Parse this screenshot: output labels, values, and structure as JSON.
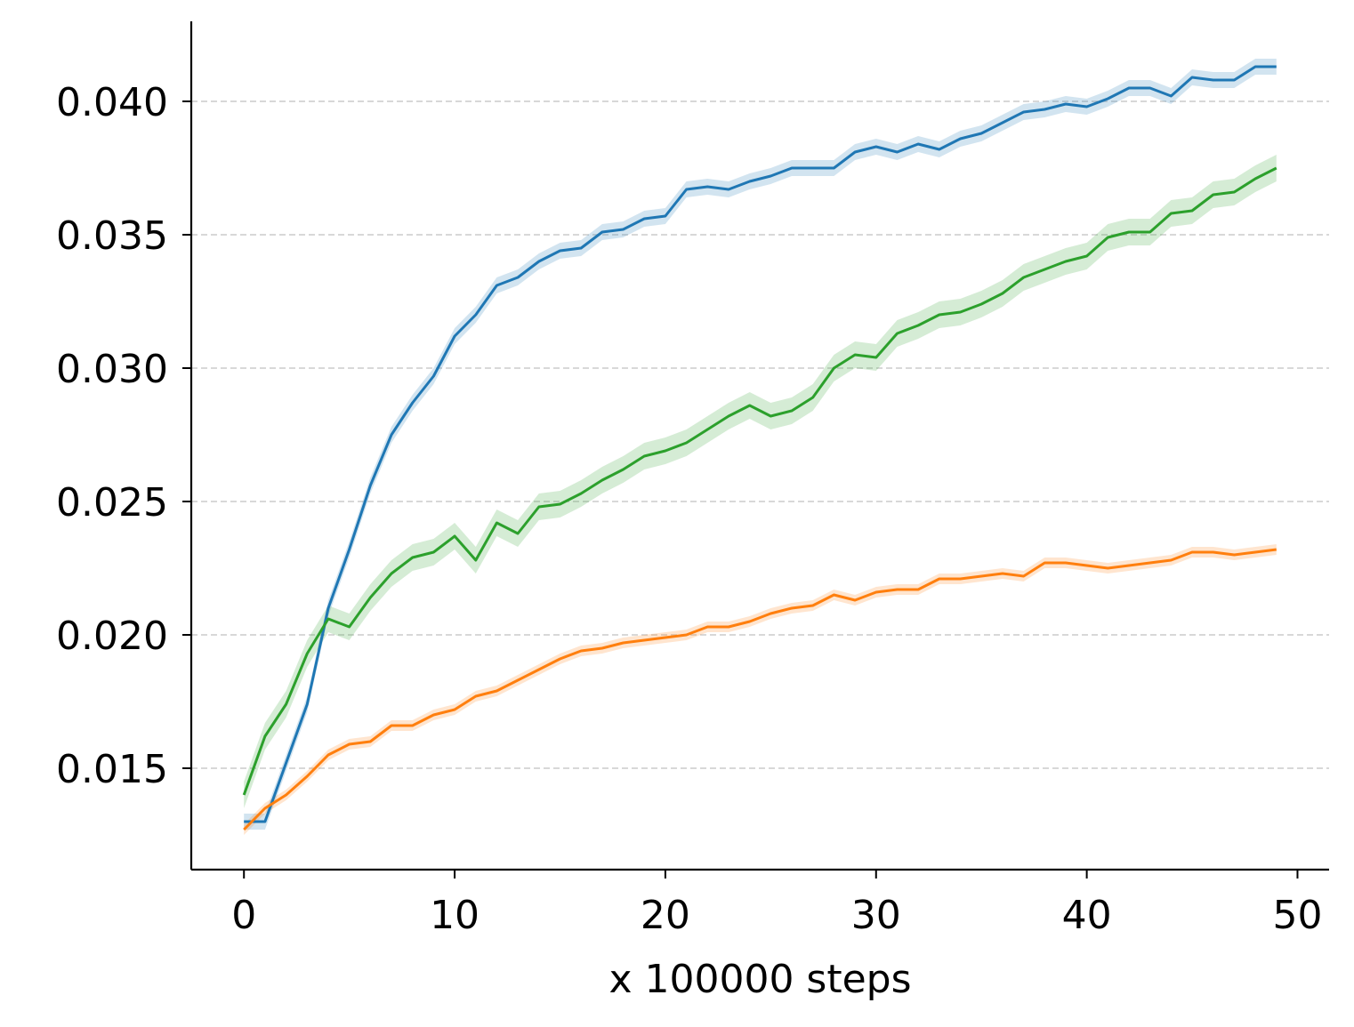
{
  "chart_data": {
    "type": "line",
    "title": "",
    "xlabel": "x 100000 steps",
    "ylabel": "",
    "xlim": [
      -2.5,
      51.5
    ],
    "ylim": [
      0.0112,
      0.043
    ],
    "xticks": [
      0,
      10,
      20,
      30,
      40,
      50
    ],
    "xtick_labels": [
      "0",
      "10",
      "20",
      "30",
      "40",
      "50"
    ],
    "yticks": [
      0.015,
      0.02,
      0.025,
      0.03,
      0.035,
      0.04
    ],
    "ytick_labels": [
      "0.015",
      "0.020",
      "0.025",
      "0.030",
      "0.035",
      "0.040"
    ],
    "grid": "horizontal dashed",
    "x": [
      0,
      1,
      2,
      3,
      4,
      5,
      6,
      7,
      8,
      9,
      10,
      11,
      12,
      13,
      14,
      15,
      16,
      17,
      18,
      19,
      20,
      21,
      22,
      23,
      24,
      25,
      26,
      27,
      28,
      29,
      30,
      31,
      32,
      33,
      34,
      35,
      36,
      37,
      38,
      39,
      40,
      41,
      42,
      43,
      44,
      45,
      46,
      47,
      48,
      49
    ],
    "series": [
      {
        "color": "#1f77b4",
        "band": 0.0003,
        "values": [
          0.013,
          0.013,
          0.0152,
          0.0174,
          0.021,
          0.0232,
          0.0256,
          0.0275,
          0.0287,
          0.0297,
          0.0312,
          0.032,
          0.0331,
          0.0334,
          0.034,
          0.0344,
          0.0345,
          0.0351,
          0.0352,
          0.0356,
          0.0357,
          0.0367,
          0.0368,
          0.0367,
          0.037,
          0.0372,
          0.0375,
          0.0375,
          0.0375,
          0.0381,
          0.0383,
          0.0381,
          0.0384,
          0.0382,
          0.0386,
          0.0388,
          0.0392,
          0.0396,
          0.0397,
          0.0399,
          0.0398,
          0.0401,
          0.0405,
          0.0405,
          0.0402,
          0.0409,
          0.0408,
          0.0408,
          0.0413,
          0.0413
        ]
      },
      {
        "color": "#ff7f0e",
        "band": 0.0002,
        "values": [
          0.0127,
          0.0135,
          0.014,
          0.0147,
          0.0155,
          0.0159,
          0.016,
          0.0166,
          0.0166,
          0.017,
          0.0172,
          0.0177,
          0.0179,
          0.0183,
          0.0187,
          0.0191,
          0.0194,
          0.0195,
          0.0197,
          0.0198,
          0.0199,
          0.02,
          0.0203,
          0.0203,
          0.0205,
          0.0208,
          0.021,
          0.0211,
          0.0215,
          0.0213,
          0.0216,
          0.0217,
          0.0217,
          0.0221,
          0.0221,
          0.0222,
          0.0223,
          0.0222,
          0.0227,
          0.0227,
          0.0226,
          0.0225,
          0.0226,
          0.0227,
          0.0228,
          0.0231,
          0.0231,
          0.023,
          0.0231,
          0.0232
        ]
      },
      {
        "color": "#2ca02c",
        "band": 0.0005,
        "values": [
          0.014,
          0.0162,
          0.0174,
          0.0193,
          0.0206,
          0.0203,
          0.0214,
          0.0223,
          0.0229,
          0.0231,
          0.0237,
          0.0228,
          0.0242,
          0.0238,
          0.0248,
          0.0249,
          0.0253,
          0.0258,
          0.0262,
          0.0267,
          0.0269,
          0.0272,
          0.0277,
          0.0282,
          0.0286,
          0.0282,
          0.0284,
          0.0289,
          0.03,
          0.0305,
          0.0304,
          0.0313,
          0.0316,
          0.032,
          0.0321,
          0.0324,
          0.0328,
          0.0334,
          0.0337,
          0.034,
          0.0342,
          0.0349,
          0.0351,
          0.0351,
          0.0358,
          0.0359,
          0.0365,
          0.0366,
          0.0371,
          0.0375
        ]
      }
    ]
  }
}
